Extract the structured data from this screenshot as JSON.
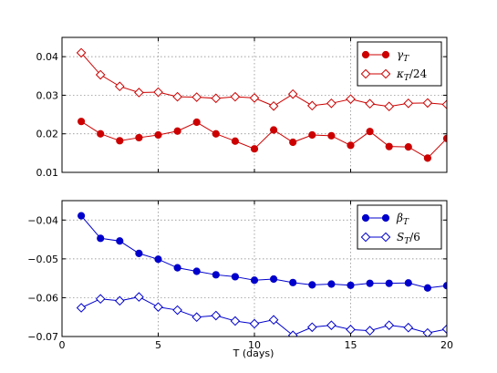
{
  "chart_data": [
    {
      "type": "line",
      "xlim": [
        0,
        20
      ],
      "ylim": [
        0.01,
        0.045
      ],
      "xticks": [
        0,
        5,
        10,
        15,
        20
      ],
      "yticks": [
        0.01,
        0.02,
        0.03,
        0.04
      ],
      "ytick_labels": [
        "0.01",
        "0.02",
        "0.03",
        "0.04"
      ],
      "xtick_labels": [
        "",
        "",
        "",
        "",
        ""
      ],
      "grid": true,
      "legend_position": "top-right",
      "series": [
        {
          "name": "γ_T",
          "legend_label": "γ",
          "legend_sub": "T",
          "legend_suffix": "",
          "color": "#cc0000",
          "marker": "circle",
          "x": [
            1,
            2,
            3,
            4,
            5,
            6,
            7,
            8,
            9,
            10,
            11,
            12,
            13,
            14,
            15,
            16,
            17,
            18,
            19,
            20
          ],
          "y": [
            0.0232,
            0.02,
            0.0182,
            0.019,
            0.0197,
            0.0207,
            0.023,
            0.02,
            0.0181,
            0.0161,
            0.021,
            0.0178,
            0.0197,
            0.0195,
            0.017,
            0.0206,
            0.0167,
            0.0166,
            0.0137,
            0.0188
          ]
        },
        {
          "name": "κ_T/24",
          "legend_label": "κ",
          "legend_sub": "T",
          "legend_suffix": "/24",
          "color": "#cc0000",
          "marker": "diamond",
          "x": [
            1,
            2,
            3,
            4,
            5,
            6,
            7,
            8,
            9,
            10,
            11,
            12,
            13,
            14,
            15,
            16,
            17,
            18,
            19,
            20
          ],
          "y": [
            0.041,
            0.0353,
            0.0323,
            0.0307,
            0.0308,
            0.0296,
            0.0295,
            0.0292,
            0.0296,
            0.0293,
            0.0272,
            0.0303,
            0.0273,
            0.0279,
            0.029,
            0.0278,
            0.0271,
            0.0279,
            0.028,
            0.0276
          ]
        }
      ]
    },
    {
      "type": "line",
      "xlim": [
        0,
        20
      ],
      "ylim": [
        -0.07,
        -0.035
      ],
      "xticks": [
        0,
        5,
        10,
        15,
        20
      ],
      "yticks": [
        -0.07,
        -0.06,
        -0.05,
        -0.04
      ],
      "ytick_labels": [
        "−0.07",
        "−0.06",
        "−0.05",
        "−0.04"
      ],
      "xtick_labels": [
        "0",
        "5",
        "10",
        "15",
        "20"
      ],
      "xlabel": "T (days)",
      "grid": true,
      "legend_position": "top-right",
      "series": [
        {
          "name": "β_T",
          "legend_label": "β",
          "legend_sub": "T",
          "legend_suffix": "",
          "color": "#0000cc",
          "marker": "circle",
          "x": [
            1,
            2,
            3,
            4,
            5,
            6,
            7,
            8,
            9,
            10,
            11,
            12,
            13,
            14,
            15,
            16,
            17,
            18,
            19,
            20
          ],
          "y": [
            -0.0389,
            -0.0447,
            -0.0454,
            -0.0486,
            -0.0501,
            -0.0523,
            -0.0532,
            -0.0541,
            -0.0546,
            -0.0555,
            -0.0552,
            -0.0561,
            -0.0567,
            -0.0565,
            -0.0568,
            -0.0563,
            -0.0563,
            -0.0562,
            -0.0575,
            -0.0569
          ]
        },
        {
          "name": "S_T/6",
          "legend_label": "S",
          "legend_sub": "T",
          "legend_suffix": "/6",
          "color": "#0000cc",
          "marker": "diamond",
          "x": [
            1,
            2,
            3,
            4,
            5,
            6,
            7,
            8,
            9,
            10,
            11,
            12,
            13,
            14,
            15,
            16,
            17,
            18,
            19,
            20
          ],
          "y": [
            -0.0626,
            -0.0603,
            -0.0608,
            -0.0598,
            -0.0624,
            -0.0632,
            -0.065,
            -0.0646,
            -0.066,
            -0.0667,
            -0.0657,
            -0.0697,
            -0.0676,
            -0.0671,
            -0.0682,
            -0.0685,
            -0.0671,
            -0.0677,
            -0.0691,
            -0.0681
          ]
        }
      ]
    }
  ]
}
